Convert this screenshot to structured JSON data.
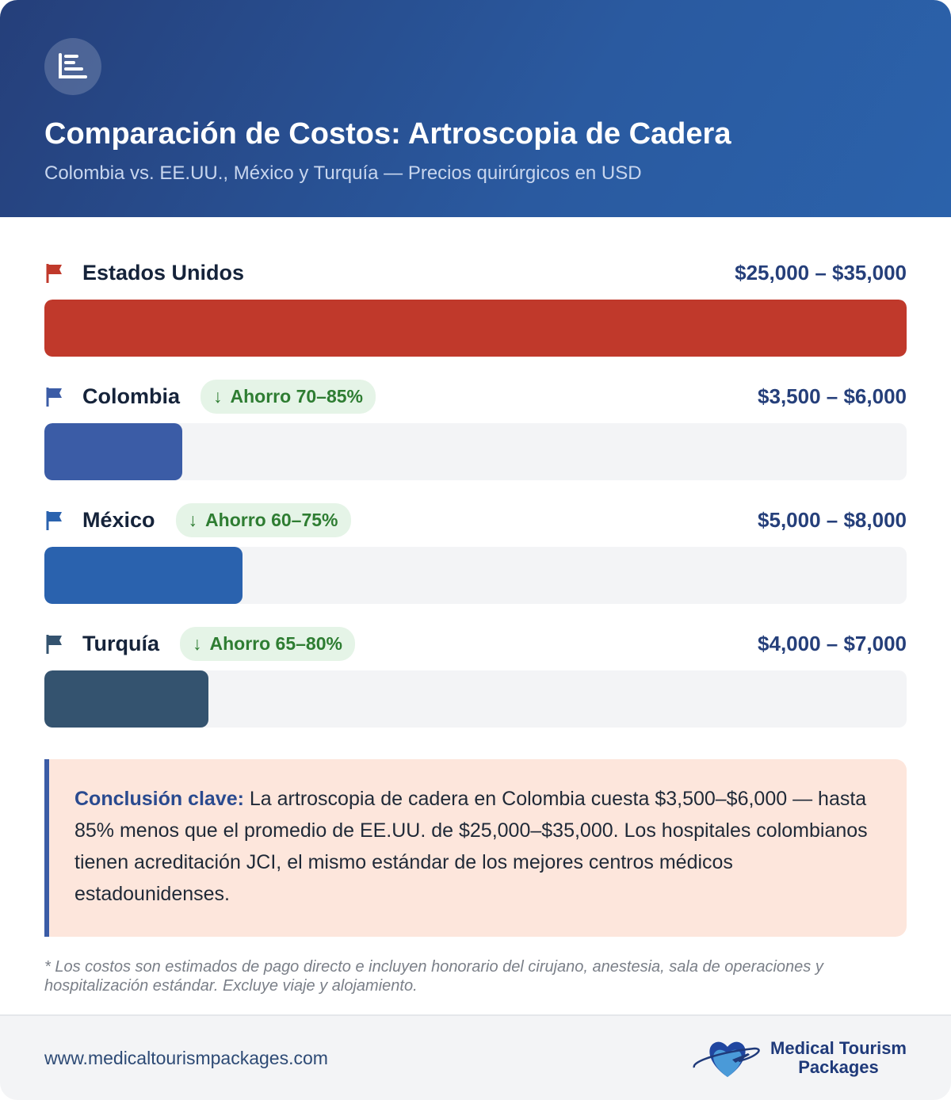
{
  "header": {
    "icon": "bar-chart-icon",
    "title": "Comparación de Costos: Artroscopia de Cadera",
    "subtitle": "Colombia vs. EE.UU., México y Turquía — Precios quirúrgicos en USD"
  },
  "chart_data": {
    "type": "bar",
    "orientation": "horizontal",
    "categories": [
      "Estados Unidos",
      "Colombia",
      "México",
      "Turquía"
    ],
    "price_labels": [
      "$25,000 – $35,000",
      "$3,500 – $6,000",
      "$5,000 – $8,000",
      "$4,000 – $7,000"
    ],
    "ranges_usd": [
      [
        25000,
        35000
      ],
      [
        3500,
        6000
      ],
      [
        5000,
        8000
      ],
      [
        4000,
        7000
      ]
    ],
    "bar_fill_percent": [
      100,
      16,
      23,
      19
    ],
    "badges": [
      null,
      "Ahorro 70–85%",
      "Ahorro 60–75%",
      "Ahorro 65–80%"
    ],
    "colors": [
      "#c0392b",
      "#3b5ca6",
      "#2a62ae",
      "#34536f"
    ]
  },
  "conclusion": {
    "label": "Conclusión clave:",
    "text": " La artroscopia de cadera en Colombia cuesta $3,500–$6,000 — hasta 85% menos que el promedio de EE.UU. de $25,000–$35,000. Los hospitales colombianos tienen acreditación JCI, el mismo estándar de los mejores centros médicos estadounidenses."
  },
  "note": "* Los costos son estimados de pago directo e incluyen honorario del cirujano, anestesia, sala de operaciones y hospitalización estándar. Excluye viaje y alojamiento.",
  "footer": {
    "url": "www.medicaltourismpackages.com",
    "logo_line1": "Medical Tourism",
    "logo_line2": "Packages"
  }
}
